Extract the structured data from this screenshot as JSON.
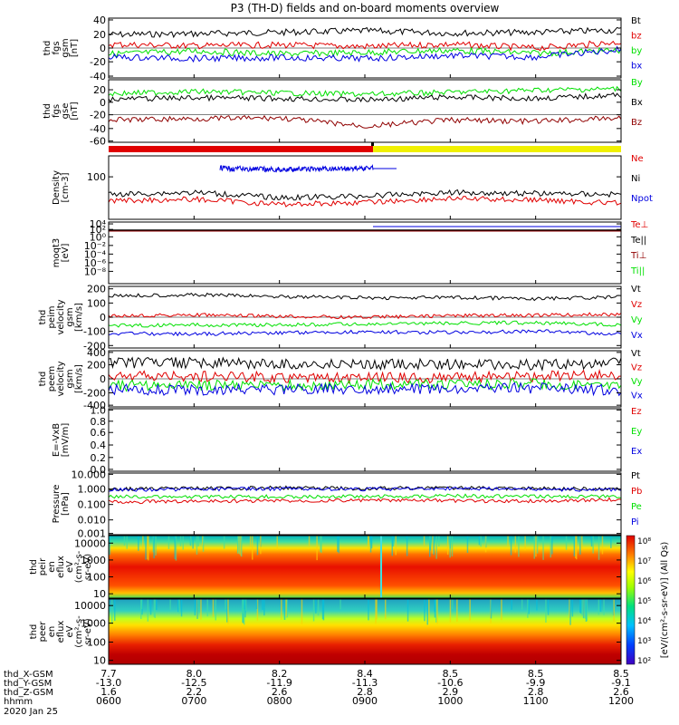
{
  "title": "P3 (TH-D) fields and on-board moments overview",
  "colors": {
    "black": "#000000",
    "red": "#e00000",
    "green": "#00e000",
    "blue": "#0000e0",
    "darkred": "#900000",
    "yellow": "#f0f000"
  },
  "panels": [
    {
      "ylabel": [
        "thd",
        "fgs",
        "gsm",
        "[nT]"
      ],
      "ticks": [
        "40",
        "20",
        "0",
        "-20",
        "-40"
      ],
      "legend": [
        {
          "label": "Bt",
          "color": "black"
        },
        {
          "label": "bz",
          "color": "red"
        },
        {
          "label": "by",
          "color": "green"
        },
        {
          "label": "bx",
          "color": "blue"
        }
      ]
    },
    {
      "ylabel": [
        "thd",
        "fgs",
        "gse",
        "[nT]"
      ],
      "ticks": [
        "20",
        "0",
        "-20",
        "-40",
        "-60"
      ],
      "legend": [
        {
          "label": "By",
          "color": "green"
        },
        {
          "label": "Bx",
          "color": "black"
        },
        {
          "label": "Bz",
          "color": "darkred"
        }
      ]
    },
    {
      "ylabel": [
        "Density",
        "[cm-3]"
      ],
      "ticks": [
        "100"
      ],
      "legend": [
        {
          "label": "Ne",
          "color": "red"
        },
        {
          "label": "Ni",
          "color": "black"
        },
        {
          "label": "Npot",
          "color": "blue"
        }
      ]
    },
    {
      "ylabel": [
        "moqt3",
        "[eV]"
      ],
      "ticks": [
        "10⁴",
        "10²",
        "10⁰",
        "10⁻²",
        "10⁻⁴",
        "10⁻⁶",
        "10⁻⁸"
      ],
      "legend": [
        {
          "label": "Te⊥",
          "color": "red"
        },
        {
          "label": "Te||",
          "color": "black"
        },
        {
          "label": "Ti⊥",
          "color": "darkred"
        },
        {
          "label": "Ti||",
          "color": "green"
        }
      ]
    },
    {
      "ylabel": [
        "thd",
        "peim",
        "velocity",
        "gsm",
        "[km/s]"
      ],
      "ticks": [
        "200",
        "100",
        "0",
        "-100",
        "-200"
      ],
      "legend": [
        {
          "label": "Vt",
          "color": "black"
        },
        {
          "label": "Vz",
          "color": "red"
        },
        {
          "label": "Vy",
          "color": "green"
        },
        {
          "label": "Vx",
          "color": "blue"
        }
      ]
    },
    {
      "ylabel": [
        "thd",
        "peem",
        "velocity",
        "gsm",
        "[km/s]"
      ],
      "ticks": [
        "400",
        "200",
        "0",
        "-200",
        "-400"
      ],
      "legend": [
        {
          "label": "Vt",
          "color": "black"
        },
        {
          "label": "Vz",
          "color": "red"
        },
        {
          "label": "Vy",
          "color": "green"
        },
        {
          "label": "Vx",
          "color": "blue"
        }
      ]
    },
    {
      "ylabel": [
        "E=-VxB",
        "[mV/m]"
      ],
      "ticks": [
        "1.0",
        "0.8",
        "0.6",
        "0.4",
        "0.2",
        "0.0"
      ],
      "legend": [
        {
          "label": "Ez",
          "color": "red"
        },
        {
          "label": "Ey",
          "color": "green"
        },
        {
          "label": "Ex",
          "color": "blue"
        }
      ]
    },
    {
      "ylabel": [
        "Pressure",
        "[nPa]"
      ],
      "ticks": [
        "10.000",
        "1.000",
        "0.100",
        "0.010",
        "0.001"
      ],
      "legend": [
        {
          "label": "Pt",
          "color": "black"
        },
        {
          "label": "Pb",
          "color": "red"
        },
        {
          "label": "Pe",
          "color": "green"
        },
        {
          "label": "Pi",
          "color": "blue"
        }
      ]
    },
    {
      "ylabel": [
        "thd",
        "peir",
        "en",
        "eflux",
        "eV",
        "(cm²-s-",
        "sr-eV)"
      ],
      "ticks": [
        "10000",
        "1000",
        "100",
        "10"
      ]
    },
    {
      "ylabel": [
        "thd",
        "peer",
        "en",
        "eflux",
        "eV",
        "(cm²-s-",
        "sr-eV)"
      ],
      "ticks": [
        "10000",
        "1000",
        "100",
        "10"
      ]
    }
  ],
  "colorbar": {
    "ticks": [
      "10⁸",
      "10⁷",
      "10⁶",
      "10⁵",
      "10⁴",
      "10³",
      "10²"
    ],
    "label": "[eV/(cm²-s-sr-eV)] (All Qs)"
  },
  "xaxis": {
    "rows": [
      {
        "label": "thd_X-GSM",
        "values": [
          "7.7",
          "8.0",
          "8.2",
          "8.4",
          "8.5",
          "8.5",
          "8.5"
        ]
      },
      {
        "label": "thd_Y-GSM",
        "values": [
          "-13.0",
          "-12.5",
          "-11.9",
          "-11.3",
          "-10.6",
          "-9.9",
          "-9.1"
        ]
      },
      {
        "label": "thd_Z-GSM",
        "values": [
          "1.6",
          "2.2",
          "2.6",
          "2.8",
          "2.9",
          "2.8",
          "2.6"
        ]
      },
      {
        "label": "hhmm",
        "values": [
          "0600",
          "0700",
          "0800",
          "0900",
          "1000",
          "1100",
          "1200"
        ]
      }
    ],
    "date": "2020 Jan 25"
  },
  "chart_data": [
    {
      "type": "line",
      "title": "P3 (TH-D) fields and on-board moments overview",
      "ylabel": "thd fgs gsm [nT]",
      "ylim": [
        -40,
        40
      ],
      "x": [
        "0600",
        "0700",
        "0800",
        "0900",
        "1000",
        "1100",
        "1200"
      ],
      "series": [
        {
          "name": "Bt",
          "values": [
            18,
            19,
            21,
            23,
            20,
            21,
            24
          ]
        },
        {
          "name": "bz",
          "values": [
            5,
            3,
            4,
            2,
            5,
            0,
            8
          ]
        },
        {
          "name": "by",
          "values": [
            -8,
            -4,
            -8,
            -6,
            -3,
            -7,
            -3
          ]
        },
        {
          "name": "bx",
          "values": [
            -12,
            -14,
            -13,
            -14,
            -10,
            -12,
            -2
          ]
        }
      ]
    },
    {
      "type": "line",
      "ylabel": "thd fgs gse [nT]",
      "ylim": [
        -65,
        25
      ],
      "x": [
        "0600",
        "0700",
        "0800",
        "0900",
        "1000",
        "1100",
        "1200"
      ],
      "series": [
        {
          "name": "By",
          "values": [
            5,
            8,
            6,
            4,
            7,
            10,
            12
          ]
        },
        {
          "name": "Bx",
          "values": [
            -3,
            -1,
            -2,
            -4,
            0,
            -2,
            3
          ]
        },
        {
          "name": "Bz",
          "values": [
            -33,
            -31,
            -30,
            -42,
            -33,
            -35,
            -30
          ]
        }
      ]
    },
    {
      "type": "line",
      "ylabel": "Density [cm-3]",
      "log": true,
      "x": [
        "0600",
        "0700",
        "0800",
        "0900",
        "1000",
        "1100",
        "1200"
      ],
      "series": [
        {
          "name": "Ni",
          "values": [
            28,
            32,
            22,
            25,
            32,
            30,
            28
          ]
        },
        {
          "name": "Ne",
          "values": [
            18,
            20,
            14,
            16,
            21,
            19,
            15
          ]
        },
        {
          "name": "Npot",
          "values": [
            null,
            170,
            155,
            175,
            null,
            null,
            null
          ]
        }
      ]
    },
    {
      "type": "line",
      "ylabel": "thd peim velocity gsm [km/s]",
      "ylim": [
        -200,
        200
      ],
      "x": [
        "0600",
        "0700",
        "0800",
        "0900",
        "1000",
        "1100",
        "1200"
      ],
      "series": [
        {
          "name": "Vt",
          "values": [
            140,
            145,
            135,
            125,
            128,
            120,
            130
          ]
        },
        {
          "name": "Vz",
          "values": [
            10,
            15,
            5,
            0,
            10,
            12,
            20
          ]
        },
        {
          "name": "Vy",
          "values": [
            -55,
            -50,
            -50,
            -45,
            -40,
            -35,
            -50
          ]
        },
        {
          "name": "Vx",
          "values": [
            -105,
            -110,
            -100,
            -95,
            -100,
            -90,
            -110
          ]
        }
      ]
    },
    {
      "type": "line",
      "ylabel": "thd peem velocity gsm [km/s]",
      "ylim": [
        -400,
        400
      ],
      "x": [
        "0600",
        "0700",
        "0800",
        "0900",
        "1000",
        "1100",
        "1200"
      ],
      "series": [
        {
          "name": "Vt",
          "values": [
            220,
            230,
            210,
            200,
            210,
            200,
            230
          ]
        },
        {
          "name": "Vz",
          "values": [
            30,
            40,
            20,
            10,
            20,
            30,
            60
          ]
        },
        {
          "name": "Vy",
          "values": [
            -100,
            -90,
            -100,
            -80,
            -80,
            -70,
            -100
          ]
        },
        {
          "name": "Vx",
          "values": [
            -150,
            -160,
            -150,
            -140,
            -150,
            -130,
            -160
          ]
        }
      ]
    },
    {
      "type": "line",
      "ylabel": "Pressure [nPa]",
      "log": true,
      "ylim": [
        0.001,
        10
      ],
      "x": [
        "0600",
        "0700",
        "0800",
        "0900",
        "1000",
        "1100",
        "1200"
      ],
      "series": [
        {
          "name": "Pt",
          "values": [
            0.9,
            1.0,
            1.1,
            1.0,
            1.1,
            1.0,
            0.9
          ]
        },
        {
          "name": "Pi",
          "values": [
            0.8,
            0.9,
            0.95,
            0.9,
            1.0,
            0.9,
            0.8
          ]
        },
        {
          "name": "Pe",
          "values": [
            0.3,
            0.28,
            0.3,
            0.3,
            0.33,
            0.3,
            0.3
          ]
        },
        {
          "name": "Pb",
          "values": [
            0.13,
            0.15,
            0.16,
            0.17,
            0.16,
            0.15,
            0.2
          ]
        }
      ]
    },
    {
      "type": "heatmap",
      "ylabel": "thd peir en eflux",
      "ylim": [
        10,
        20000
      ],
      "log": true,
      "x": [
        "0600",
        "0700",
        "0800",
        "0900",
        "1000",
        "1100",
        "1200"
      ]
    },
    {
      "type": "heatmap",
      "ylabel": "thd peer en eflux",
      "ylim": [
        10,
        20000
      ],
      "log": true,
      "x": [
        "0600",
        "0700",
        "0800",
        "0900",
        "1000",
        "1100",
        "1200"
      ]
    }
  ]
}
